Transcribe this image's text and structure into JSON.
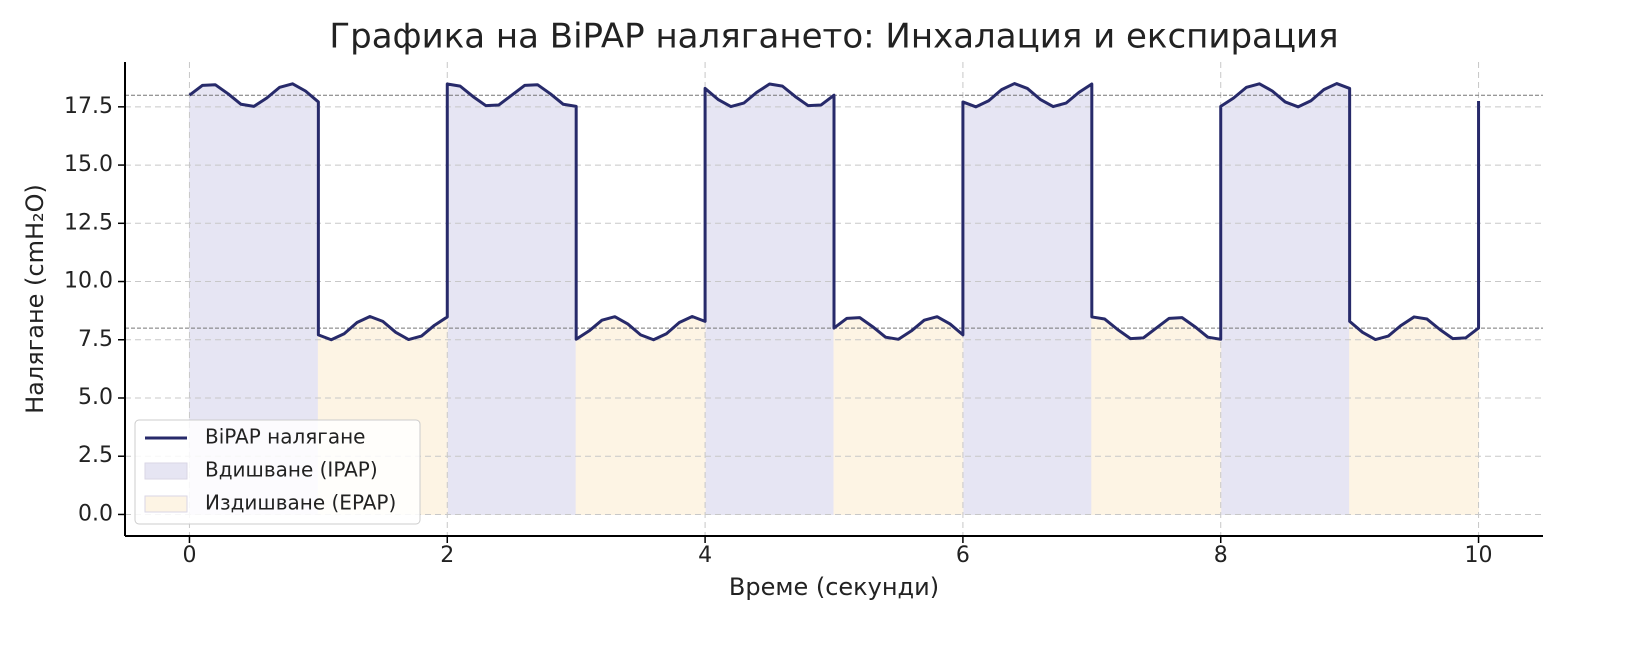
{
  "chart_data": {
    "type": "line",
    "title": "Графика на BiPAP налягането: Инхалация и експирация",
    "x_label": "Време (секунди)",
    "y_label": "Налягане (cmH₂O)",
    "x": [
      0,
      0.1,
      0.2,
      0.3,
      0.4,
      0.5,
      0.6,
      0.7,
      0.8,
      0.9,
      1,
      1,
      1.1,
      1.2,
      1.3,
      1.4,
      1.5,
      1.6,
      1.7,
      1.8,
      1.9,
      2,
      2,
      2.1,
      2.2,
      2.3,
      2.4,
      2.5,
      2.6,
      2.7,
      2.8,
      2.9,
      3,
      3,
      3.1,
      3.2,
      3.3,
      3.4,
      3.5,
      3.6,
      3.7,
      3.8,
      3.9,
      4,
      4,
      4.1,
      4.2,
      4.3,
      4.4,
      4.5,
      4.6,
      4.7,
      4.8,
      4.9,
      5,
      5,
      5.1,
      5.2,
      5.3,
      5.4,
      5.5,
      5.6,
      5.7,
      5.8,
      5.9,
      6,
      6,
      6.1,
      6.2,
      6.3,
      6.4,
      6.5,
      6.6,
      6.7,
      6.8,
      6.9,
      7,
      7,
      7.1,
      7.2,
      7.3,
      7.4,
      7.5,
      7.6,
      7.7,
      7.8,
      7.9,
      8,
      8,
      8.1,
      8.2,
      8.3,
      8.4,
      8.5,
      8.6,
      8.7,
      8.8,
      8.9,
      9,
      9,
      9.1,
      9.2,
      9.3,
      9.4,
      9.5,
      9.6,
      9.7,
      9.8,
      9.9,
      10,
      10
    ],
    "series": [
      {
        "name": "BiPAP налягане",
        "color": "#272a6a",
        "values": [
          18,
          18.42,
          18.45,
          18.06,
          17.61,
          17.52,
          17.88,
          18.34,
          18.49,
          18.18,
          17.71,
          7.71,
          7.5,
          7.76,
          8.24,
          8.5,
          8.29,
          7.82,
          7.51,
          7.66,
          8.12,
          8.48,
          18.48,
          18.39,
          17.94,
          17.55,
          17.58,
          18,
          18.42,
          18.45,
          18.06,
          17.61,
          17.52,
          7.52,
          7.88,
          8.34,
          8.49,
          8.18,
          7.71,
          7.5,
          7.76,
          8.24,
          8.5,
          8.29,
          18.29,
          17.82,
          17.51,
          17.66,
          18.12,
          18.48,
          18.39,
          17.94,
          17.55,
          17.58,
          18,
          8,
          8.42,
          8.45,
          8.06,
          7.61,
          7.52,
          7.88,
          8.34,
          8.49,
          8.18,
          7.71,
          17.71,
          17.5,
          17.76,
          18.24,
          18.5,
          18.29,
          17.82,
          17.51,
          17.66,
          18.12,
          18.48,
          8.48,
          8.39,
          7.94,
          7.55,
          7.58,
          8,
          8.42,
          8.45,
          8.06,
          7.61,
          7.52,
          17.52,
          17.88,
          18.34,
          18.49,
          18.18,
          17.71,
          17.5,
          17.76,
          18.24,
          18.5,
          18.29,
          8.29,
          7.82,
          7.51,
          7.66,
          8.12,
          8.48,
          8.39,
          7.94,
          7.55,
          7.58,
          8,
          17.75
        ]
      }
    ],
    "fills": [
      {
        "name": "Вдишване (IPAP)",
        "color": "#e6e5f3",
        "spans": [
          [
            0,
            1
          ],
          [
            2,
            3
          ],
          [
            4,
            5
          ],
          [
            6,
            7
          ],
          [
            8,
            9
          ]
        ]
      },
      {
        "name": "Издишване (EPAP)",
        "color": "#fdf4e4",
        "spans": [
          [
            1,
            2
          ],
          [
            3,
            4
          ],
          [
            5,
            6
          ],
          [
            7,
            8
          ],
          [
            9,
            10
          ]
        ]
      }
    ],
    "hlines": [
      18,
      8
    ],
    "xlim": [
      -0.5,
      10.5
    ],
    "ylim": [
      -0.925,
      19.425
    ],
    "xticks": [
      0,
      2,
      4,
      6,
      8,
      10
    ],
    "yticks": [
      {
        "value": 0,
        "label": "0.0"
      },
      2.5,
      {
        "value": 5,
        "label": "5.0"
      },
      7.5,
      {
        "value": 10,
        "label": "10.0"
      },
      12.5,
      {
        "value": 15,
        "label": "15.0"
      },
      17.5
    ],
    "grid": true,
    "legend": "lower left"
  }
}
